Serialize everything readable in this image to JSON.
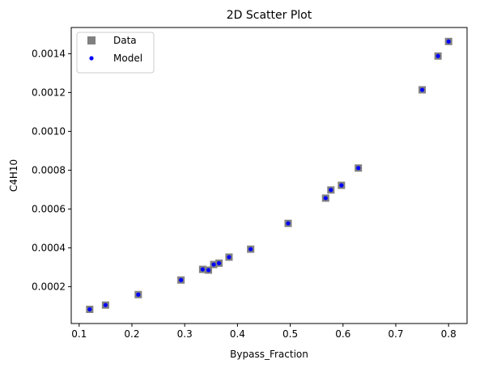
{
  "chart_data": {
    "type": "scatter",
    "title": "2D Scatter Plot",
    "xlabel": "Bypass_Fraction",
    "ylabel": "C4H10",
    "xlim": [
      0.085,
      0.835
    ],
    "ylim": [
      1e-05,
      0.001535
    ],
    "x_ticks": [
      0.1,
      0.2,
      0.3,
      0.4,
      0.5,
      0.6,
      0.7,
      0.8
    ],
    "x_tick_labels": [
      "0.1",
      "0.2",
      "0.3",
      "0.4",
      "0.5",
      "0.6",
      "0.7",
      "0.8"
    ],
    "y_ticks": [
      0.0002,
      0.0004,
      0.0006,
      0.0008,
      0.001,
      0.0012,
      0.0014
    ],
    "y_tick_labels": [
      "0.0002",
      "0.0004",
      "0.0006",
      "0.0008",
      "0.0010",
      "0.0012",
      "0.0014"
    ],
    "grid": false,
    "legend_position": "top-left",
    "series": [
      {
        "name": "Data",
        "marker": "square",
        "color": "#808080",
        "points": [
          [
            0.12,
            8.3e-05
          ],
          [
            0.15,
            0.000105
          ],
          [
            0.212,
            0.000159
          ],
          [
            0.293,
            0.000234
          ],
          [
            0.334,
            0.000289
          ],
          [
            0.345,
            0.000285
          ],
          [
            0.355,
            0.000314
          ],
          [
            0.365,
            0.000321
          ],
          [
            0.384,
            0.000352
          ],
          [
            0.425,
            0.000393
          ],
          [
            0.496,
            0.000526
          ],
          [
            0.567,
            0.000656
          ],
          [
            0.577,
            0.000698
          ],
          [
            0.597,
            0.000722
          ],
          [
            0.629,
            0.000811
          ],
          [
            0.75,
            0.001214
          ],
          [
            0.78,
            0.001388
          ],
          [
            0.8,
            0.001463
          ]
        ]
      },
      {
        "name": "Model",
        "marker": "circle",
        "color": "#0000ff",
        "points": [
          [
            0.12,
            8.3e-05
          ],
          [
            0.15,
            0.000105
          ],
          [
            0.212,
            0.000159
          ],
          [
            0.293,
            0.000234
          ],
          [
            0.334,
            0.000289
          ],
          [
            0.345,
            0.000285
          ],
          [
            0.355,
            0.000314
          ],
          [
            0.365,
            0.000321
          ],
          [
            0.384,
            0.000352
          ],
          [
            0.425,
            0.000393
          ],
          [
            0.496,
            0.000526
          ],
          [
            0.567,
            0.000656
          ],
          [
            0.577,
            0.000698
          ],
          [
            0.597,
            0.000722
          ],
          [
            0.629,
            0.000811
          ],
          [
            0.75,
            0.001214
          ],
          [
            0.78,
            0.001388
          ],
          [
            0.8,
            0.001463
          ]
        ]
      }
    ]
  }
}
